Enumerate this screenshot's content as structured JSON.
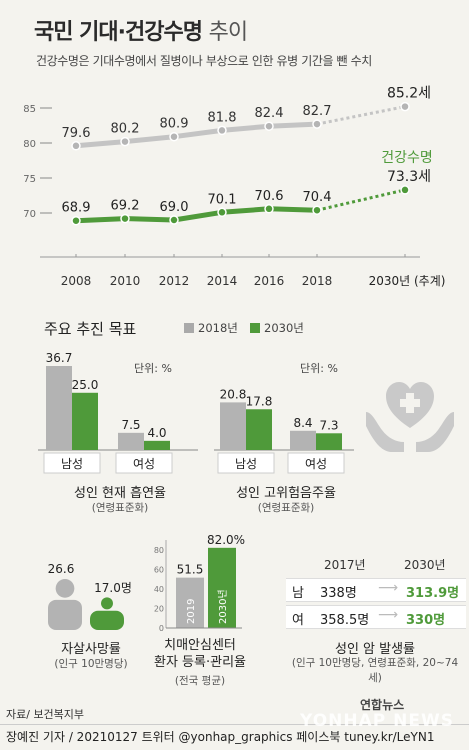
{
  "header": {
    "title_bold": "국민 기대·건강수명",
    "title_light": "추이",
    "subtitle": "건강수명은 기대수명에서 질병이나 부상으로 인한 유병 기간을 뺀 수치"
  },
  "colors": {
    "gray": "#a9a9a9",
    "green": "#4f9a3a",
    "dark_green": "#2f7a2a",
    "bg": "#f4f3ee"
  },
  "chart_data": [
    {
      "type": "line",
      "x": [
        "2008",
        "2010",
        "2012",
        "2014",
        "2016",
        "2018",
        "2030년 (추계)"
      ],
      "ylim": [
        65,
        87
      ],
      "yticks": [
        "70",
        "75",
        "80",
        "85"
      ],
      "series": [
        {
          "name": "기대수명",
          "values": [
            79.6,
            80.2,
            80.9,
            81.8,
            82.4,
            82.7,
            85.2
          ],
          "labels": [
            "79.6",
            "80.2",
            "80.9",
            "81.8",
            "82.4",
            "82.7",
            "85.2세"
          ]
        },
        {
          "name": "건강수명",
          "values": [
            68.9,
            69.2,
            69.0,
            70.1,
            70.6,
            70.4,
            73.3
          ],
          "labels": [
            "68.9",
            "69.2",
            "69.0",
            "70.1",
            "70.6",
            "70.4",
            "73.3세"
          ]
        }
      ]
    },
    {
      "type": "bar",
      "title": "성인 현재 흡연율",
      "note": "(연령표준화)",
      "unit": "단위: %",
      "categories": [
        "남성",
        "여성"
      ],
      "series": [
        {
          "name": "2018년",
          "values": [
            36.7,
            7.5
          ],
          "labels": [
            "36.7",
            "7.5"
          ]
        },
        {
          "name": "2030년",
          "values": [
            25.0,
            4.0
          ],
          "labels": [
            "25.0",
            "4.0"
          ]
        }
      ]
    },
    {
      "type": "bar",
      "title": "성인 고위험음주율",
      "note": "(연령표준화)",
      "unit": "단위: %",
      "categories": [
        "남성",
        "여성"
      ],
      "series": [
        {
          "name": "2018년",
          "values": [
            20.8,
            8.4
          ],
          "labels": [
            "20.8",
            "8.4"
          ]
        },
        {
          "name": "2030년",
          "values": [
            17.8,
            7.3
          ],
          "labels": [
            "17.8",
            "7.3"
          ]
        }
      ]
    },
    {
      "type": "bar",
      "title": "자살사망률",
      "note": "(인구 10만명당)",
      "categories": [
        "2018년",
        "2030년"
      ],
      "values": [
        26.6,
        17.0
      ],
      "labels": [
        "26.6",
        "17.0명"
      ]
    },
    {
      "type": "bar",
      "title": "치매안심센터 환자 등록·관리율",
      "note": "(전국 평균)",
      "categories": [
        "2019",
        "2030년"
      ],
      "values": [
        51.5,
        82.0
      ],
      "labels": [
        "51.5",
        "82.0%"
      ],
      "yticks": [
        "0",
        "20",
        "40",
        "60",
        "80"
      ]
    },
    {
      "type": "table",
      "title": "성인 암 발생률",
      "note": "(인구 10만명당, 연령표준화, 20~74세)",
      "columns": [
        "2017년",
        "2030년"
      ],
      "rows": [
        {
          "label": "남",
          "values": [
            "338명",
            "313.9명"
          ]
        },
        {
          "label": "여",
          "values": [
            "358.5명",
            "330명"
          ]
        }
      ]
    }
  ],
  "goals": {
    "title": "주요 추진 목표",
    "legend": [
      "2018년",
      "2030년"
    ]
  },
  "footer": {
    "source": "자료/ 보건복지부",
    "credit": "장예진 기자 / 20210127 트위터 @yonhap_graphics 페이스북 tuney.kr/LeYN1",
    "logo": "연합뉴스",
    "watermark": "YONHAP NEWS"
  }
}
